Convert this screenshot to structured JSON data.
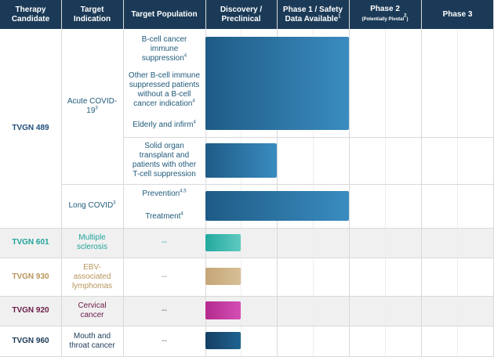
{
  "header": {
    "columns": [
      {
        "text": "Therapy Candidate"
      },
      {
        "text": "Target Indication"
      },
      {
        "text": "Target Population"
      },
      {
        "text": "Discovery / Preclinical"
      },
      {
        "text": "Phase 1 / Safety Data Available",
        "sup": "1"
      },
      {
        "text": "Phase 2",
        "note": "(Potentially Pivotal",
        "note_sup": "2",
        "note_end": ")"
      },
      {
        "text": "Phase 3"
      }
    ]
  },
  "candidates": [
    {
      "name": "TVGN 489",
      "indications": [
        {
          "text": "Acute COVID-19",
          "sup": "3",
          "populations": [
            {
              "text": "B-cell cancer immune suppression",
              "sup": "4"
            },
            {
              "text": "Other B-cell immune suppressed patients without a B-cell cancer indication",
              "sup": "4"
            },
            {
              "text": "Elderly and infirm",
              "sup": "4"
            },
            {
              "text": "Solid organ transplant and patients with other T-cell suppression"
            }
          ]
        },
        {
          "text": "Long COVID",
          "sup": "3",
          "populations": [
            {
              "text": "Prevention",
              "sup": "4,5"
            },
            {
              "text": "Treatment",
              "sup": "4"
            }
          ]
        }
      ]
    },
    {
      "name": "TVGN 601",
      "indication": "Multiple sclerosis",
      "population": "--"
    },
    {
      "name": "TVGN 930",
      "indication": "EBV-associated lymphomas",
      "population": "--"
    },
    {
      "name": "TVGN 920",
      "indication": "Cervical cancer",
      "population": "--"
    },
    {
      "name": "TVGN 960",
      "indication": "Mouth and throat cancer",
      "population": "--"
    }
  ]
}
